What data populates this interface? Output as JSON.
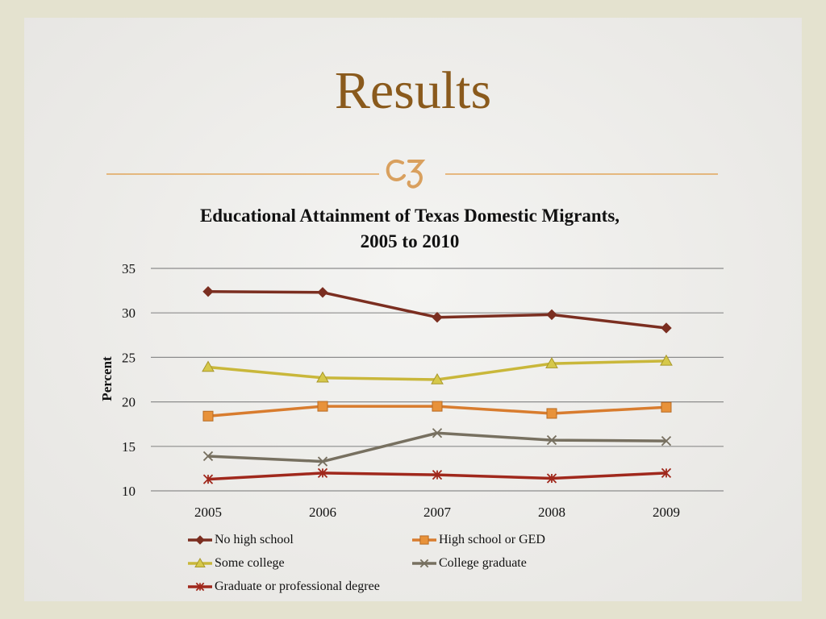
{
  "slide": {
    "title": "Results",
    "divider_color": "#e2a65a",
    "ornament_color": "#d9a05e"
  },
  "chart_data": {
    "type": "line",
    "title": "Educational Attainment of Texas Domestic Migrants, 2005 to 2010",
    "title_lines": [
      "Educational Attainment of Texas Domestic Migrants,",
      "2005 to 2010"
    ],
    "xlabel": "",
    "ylabel": "Percent",
    "x": [
      "2005",
      "2006",
      "2007",
      "2008",
      "2009"
    ],
    "ylim": [
      10,
      35
    ],
    "yticks": [
      10,
      15,
      20,
      25,
      30,
      35
    ],
    "grid": true,
    "legend_position": "bottom",
    "series": [
      {
        "name": "No high school",
        "values": [
          32.4,
          32.3,
          29.5,
          29.8,
          28.3
        ],
        "color": "#7b2e20",
        "marker": "diamond"
      },
      {
        "name": "High school or GED",
        "values": [
          18.4,
          19.5,
          19.5,
          18.7,
          19.4
        ],
        "color": "#d87c2e",
        "marker": "square"
      },
      {
        "name": "Some college",
        "values": [
          23.9,
          22.7,
          22.5,
          24.3,
          24.6
        ],
        "color": "#c9b73a",
        "marker": "triangle"
      },
      {
        "name": "College graduate",
        "values": [
          13.9,
          13.3,
          16.5,
          15.7,
          15.6
        ],
        "color": "#777060",
        "marker": "x"
      },
      {
        "name": "Graduate or professional degree",
        "values": [
          11.3,
          12.0,
          11.8,
          11.4,
          12.0
        ],
        "color": "#a0281c",
        "marker": "star"
      }
    ]
  }
}
